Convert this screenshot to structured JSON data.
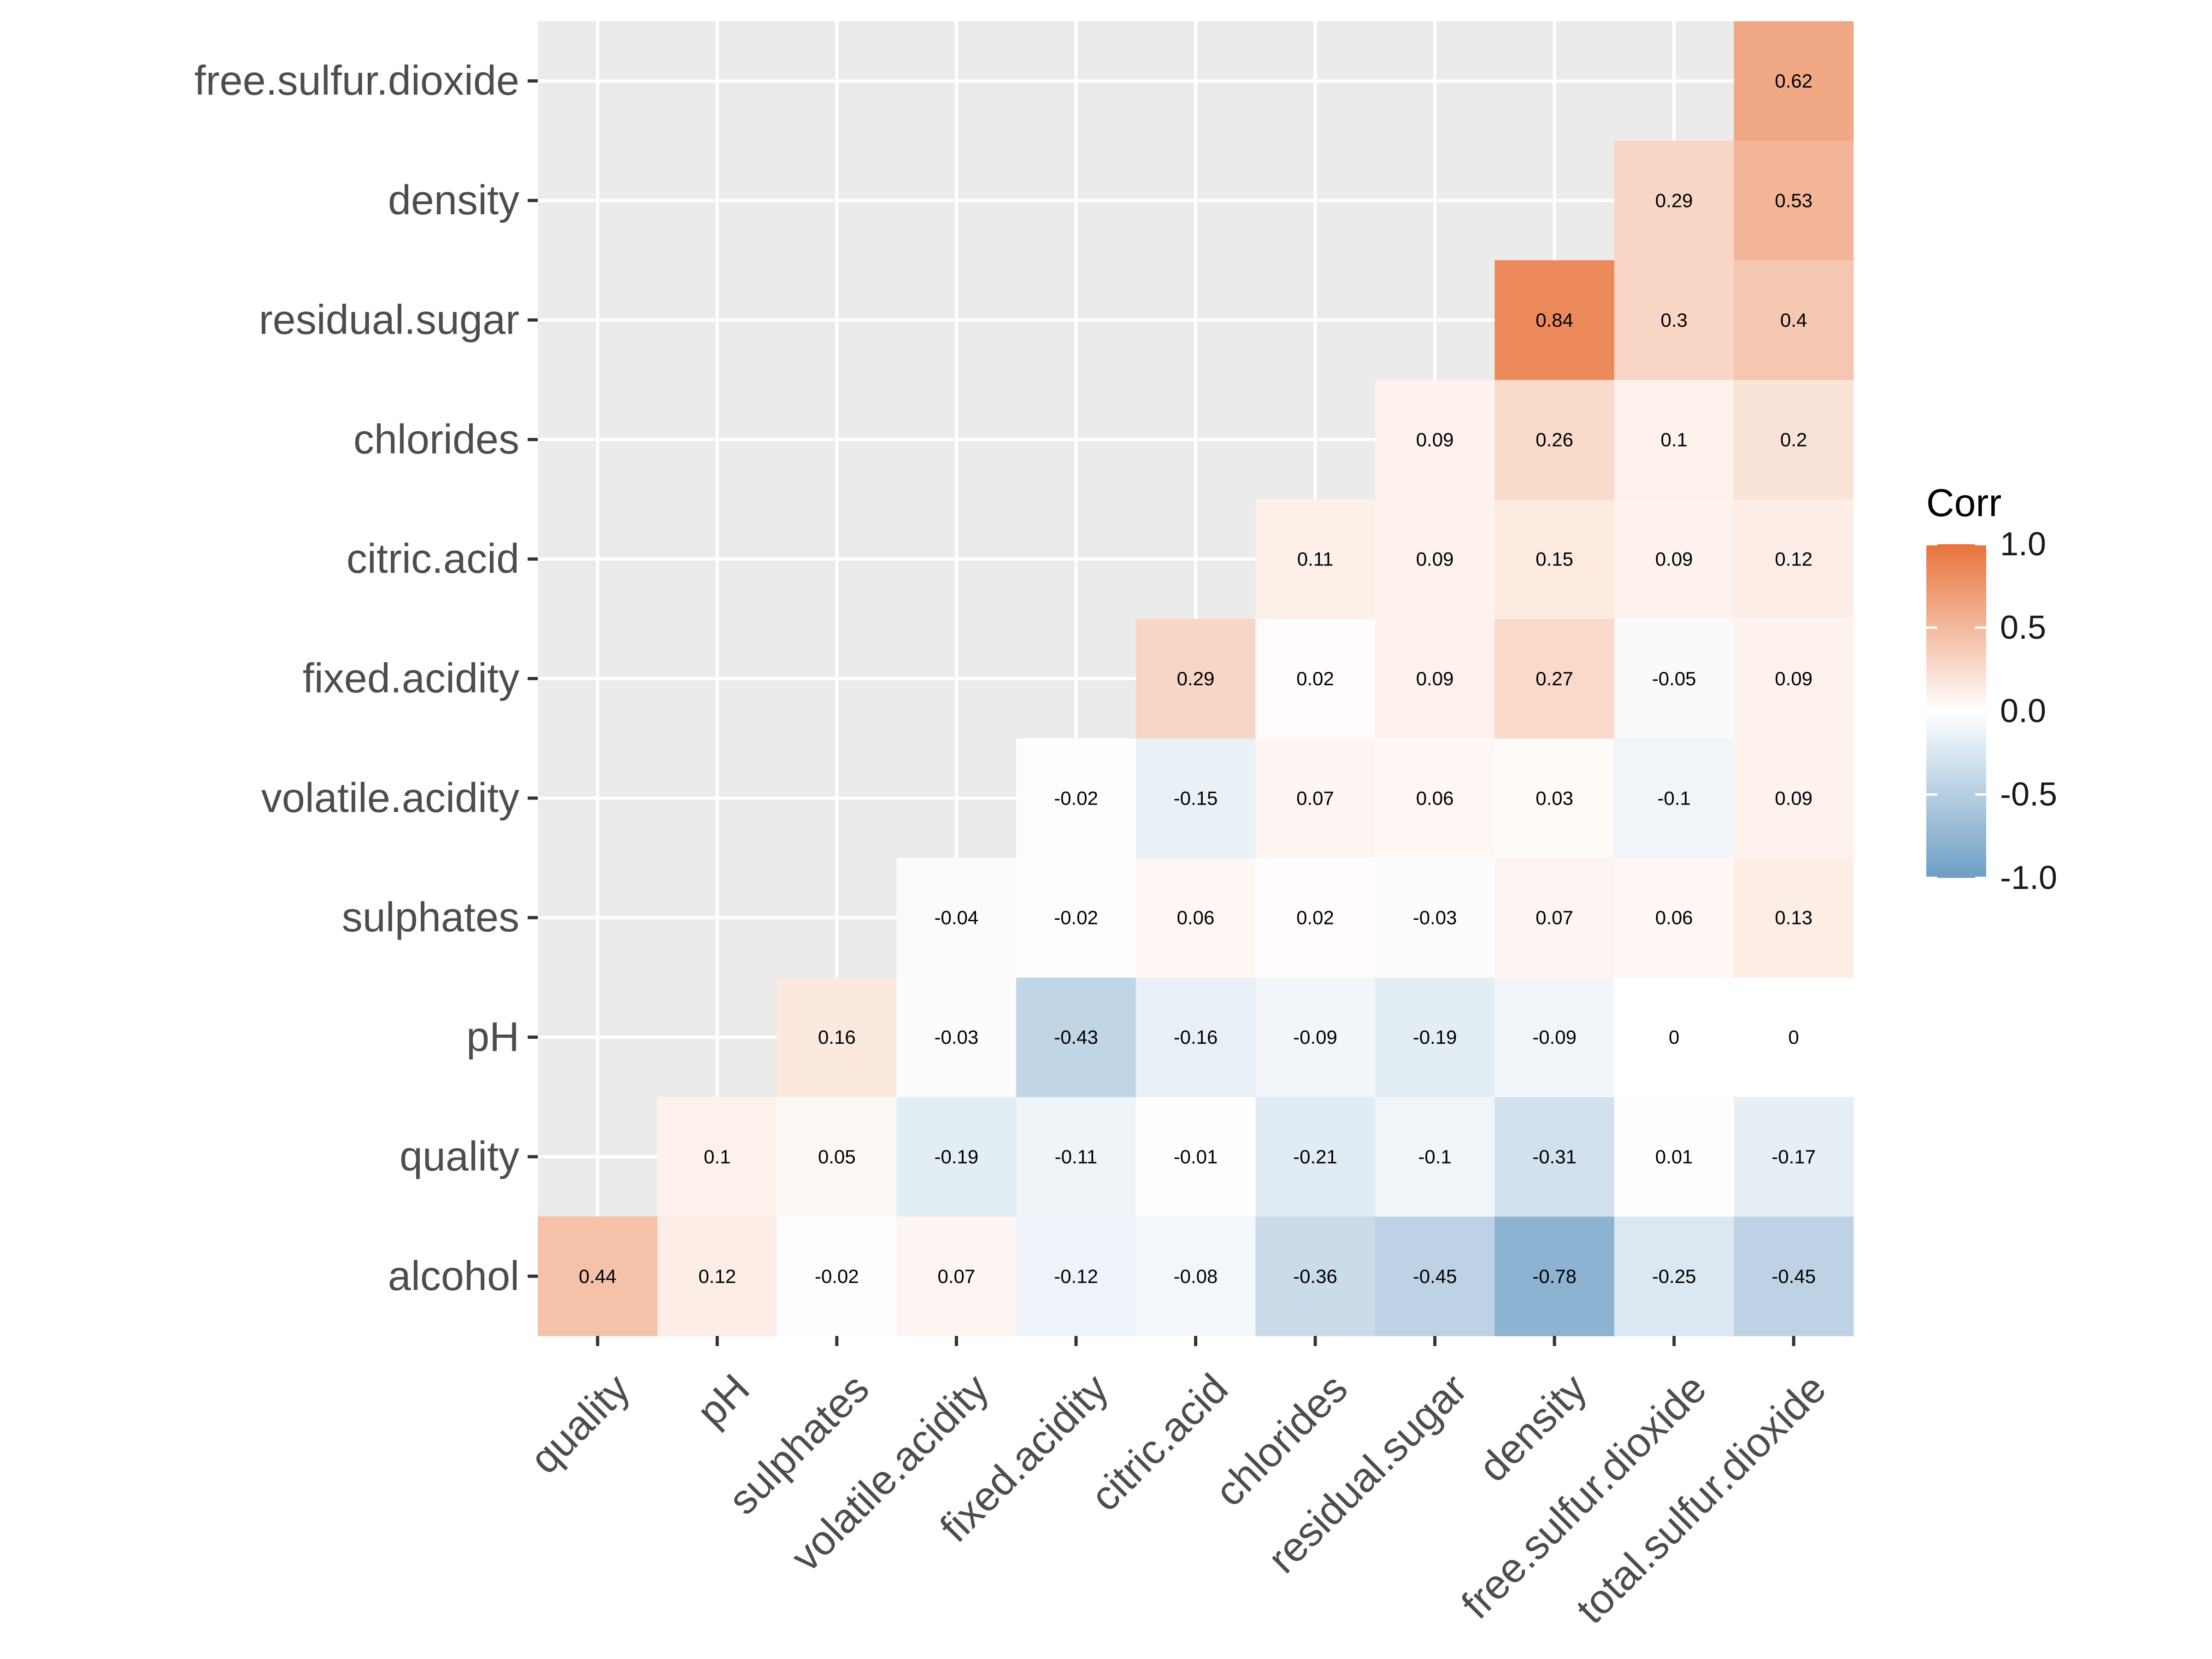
{
  "chart_data": {
    "type": "heatmap",
    "title": "",
    "xlabel": "",
    "ylabel": "",
    "x_categories": [
      "quality",
      "pH",
      "sulphates",
      "volatile.acidity",
      "fixed.acidity",
      "citric.acid",
      "chlorides",
      "residual.sugar",
      "density",
      "free.sulfur.dioxide",
      "total.sulfur.dioxide"
    ],
    "y_categories": [
      "alcohol",
      "quality",
      "pH",
      "sulphates",
      "volatile.acidity",
      "fixed.acidity",
      "citric.acid",
      "chlorides",
      "residual.sugar",
      "density",
      "free.sulfur.dioxide"
    ],
    "values": [
      [
        0.44,
        0.12,
        -0.02,
        0.07,
        -0.12,
        -0.08,
        -0.36,
        -0.45,
        -0.78,
        -0.25,
        -0.45
      ],
      [
        null,
        0.1,
        0.05,
        -0.19,
        -0.11,
        -0.01,
        -0.21,
        -0.1,
        -0.31,
        0.01,
        -0.17
      ],
      [
        null,
        null,
        0.16,
        -0.03,
        -0.43,
        -0.16,
        -0.09,
        -0.19,
        -0.09,
        0,
        0
      ],
      [
        null,
        null,
        null,
        -0.04,
        -0.02,
        0.06,
        0.02,
        -0.03,
        0.07,
        0.06,
        0.13
      ],
      [
        null,
        null,
        null,
        null,
        -0.02,
        -0.15,
        0.07,
        0.06,
        0.03,
        -0.1,
        0.09
      ],
      [
        null,
        null,
        null,
        null,
        null,
        0.29,
        0.02,
        0.09,
        0.27,
        -0.05,
        0.09
      ],
      [
        null,
        null,
        null,
        null,
        null,
        null,
        0.11,
        0.09,
        0.15,
        0.09,
        0.12
      ],
      [
        null,
        null,
        null,
        null,
        null,
        null,
        null,
        0.09,
        0.26,
        0.1,
        0.2
      ],
      [
        null,
        null,
        null,
        null,
        null,
        null,
        null,
        null,
        0.84,
        0.3,
        0.4
      ],
      [
        null,
        null,
        null,
        null,
        null,
        null,
        null,
        null,
        null,
        0.29,
        0.53
      ],
      [
        null,
        null,
        null,
        null,
        null,
        null,
        null,
        null,
        null,
        null,
        0.62
      ]
    ],
    "legend": {
      "title": "Corr",
      "ticks": [
        "1.0",
        "0.5",
        "0.0",
        "-0.5",
        "-1.0"
      ],
      "range": [
        -1,
        1
      ],
      "placement": "right"
    },
    "colors": {
      "low": "#6d9ec5",
      "mid": "#ffffff",
      "high": "#e8733a",
      "panel": "#ebebeb",
      "grid": "#ffffff"
    },
    "grid": true
  }
}
